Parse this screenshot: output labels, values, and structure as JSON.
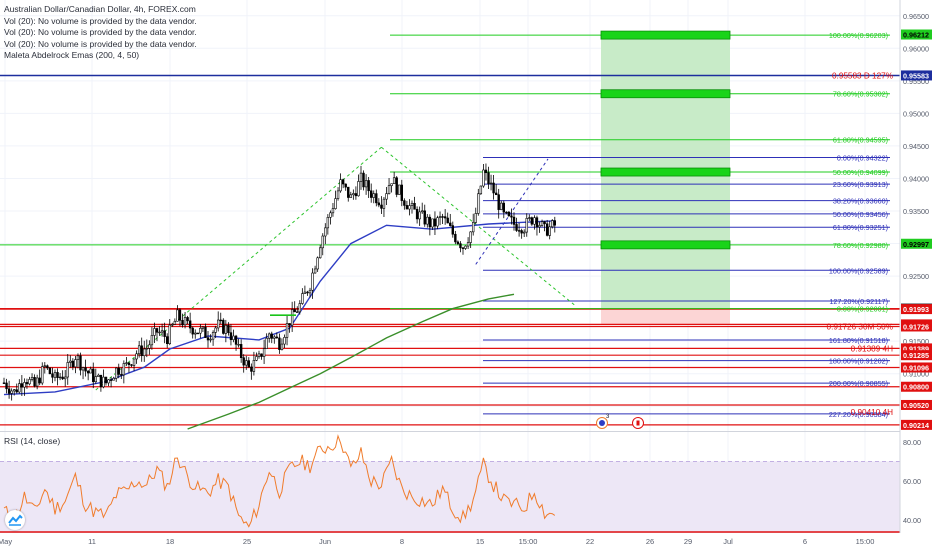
{
  "legend": {
    "title": "Australian Dollar/Canadian Dollar, 4h, FOREX.com",
    "vol_lines": [
      "Vol (20): No volume is provided by the data vendor.",
      "Vol (20): No volume is provided by the data vendor.",
      "Vol (20): No volume is provided by the data vendor."
    ],
    "ema_label": "Maleta Abdelrock Emas (200, 4, 50)",
    "rsi_label": "RSI (14, close)"
  },
  "colors": {
    "up": "#26a69a",
    "down": "#ef5350",
    "candle": "#000000",
    "fib_green": "#1fcc1f",
    "fib_blue": "#2e30b8",
    "red_level": "#e01010",
    "ema_blue": "#2e3dc4",
    "ema_green": "#3a8f2a",
    "rsi_line": "#f07c2c",
    "rsi_band": "#7e57c2",
    "target_zone": "#c8ebc8",
    "stop_zone": "#fcd5d5",
    "current_line": "#1d2e9e"
  },
  "icons": [
    "tradingview-logo-icon",
    "calendar-event-icon",
    "canada-flag-icon"
  ],
  "calendar_badge": "3",
  "chart_data": [
    {
      "type": "candlestick",
      "symbol": "AUDCAD",
      "timeframe": "4h",
      "ylim": [
        0.9012,
        0.9665
      ],
      "y_ticks": [
        0.905,
        0.91,
        0.915,
        0.92,
        0.925,
        0.93,
        0.935,
        0.94,
        0.945,
        0.95,
        0.955,
        0.96,
        0.965
      ],
      "y_tick_labels": [
        "0.90500",
        "0.91000",
        "0.91500",
        "0.92000",
        "0.92500",
        "0.93000",
        "0.93500",
        "0.94000",
        "0.94500",
        "0.95000",
        "0.95500",
        "0.96000",
        "0.96500"
      ],
      "x_tick_labels": [
        "May",
        "11",
        "18",
        "25",
        "Jun",
        "8",
        "15",
        "15:00",
        "22",
        "26",
        "29",
        "Jul",
        "6",
        "15:00"
      ],
      "price_path": [
        [
          0,
          0.9086
        ],
        [
          4,
          0.9072
        ],
        [
          8,
          0.9095
        ],
        [
          12,
          0.908
        ],
        [
          16,
          0.911
        ],
        [
          20,
          0.9092
        ],
        [
          24,
          0.91
        ],
        [
          28,
          0.9128
        ],
        [
          32,
          0.9105
        ],
        [
          36,
          0.9092
        ],
        [
          40,
          0.9086
        ],
        [
          44,
          0.9106
        ],
        [
          48,
          0.9112
        ],
        [
          52,
          0.9132
        ],
        [
          56,
          0.914
        ],
        [
          60,
          0.9165
        ],
        [
          64,
          0.9156
        ],
        [
          68,
          0.9188
        ],
        [
          72,
          0.9174
        ],
        [
          76,
          0.9166
        ],
        [
          80,
          0.916
        ],
        [
          84,
          0.9174
        ],
        [
          88,
          0.9168
        ],
        [
          92,
          0.9135
        ],
        [
          96,
          0.9108
        ],
        [
          100,
          0.9122
        ],
        [
          104,
          0.9162
        ],
        [
          108,
          0.9148
        ],
        [
          112,
          0.9182
        ],
        [
          116,
          0.9205
        ],
        [
          120,
          0.9238
        ],
        [
          124,
          0.9302
        ],
        [
          128,
          0.9348
        ],
        [
          132,
          0.9392
        ],
        [
          136,
          0.937
        ],
        [
          140,
          0.9398
        ],
        [
          144,
          0.9378
        ],
        [
          148,
          0.9365
        ],
        [
          152,
          0.94
        ],
        [
          156,
          0.9372
        ],
        [
          160,
          0.9352
        ],
        [
          164,
          0.934
        ],
        [
          168,
          0.9328
        ],
        [
          172,
          0.934
        ],
        [
          176,
          0.9315
        ],
        [
          180,
          0.9296
        ],
        [
          184,
          0.9325
        ],
        [
          188,
          0.941
        ],
        [
          192,
          0.938
        ],
        [
          196,
          0.9342
        ],
        [
          200,
          0.933
        ],
        [
          204,
          0.9326
        ],
        [
          208,
          0.9342
        ],
        [
          212,
          0.932
        ],
        [
          216,
          0.9328
        ]
      ],
      "swing_high": 0.9448,
      "swing_low": 0.9075,
      "ema_blue": [
        [
          0,
          0.9068
        ],
        [
          20,
          0.9072
        ],
        [
          40,
          0.9088
        ],
        [
          55,
          0.911
        ],
        [
          65,
          0.9138
        ],
        [
          80,
          0.9158
        ],
        [
          100,
          0.9152
        ],
        [
          112,
          0.917
        ],
        [
          124,
          0.9242
        ],
        [
          136,
          0.93
        ],
        [
          150,
          0.9328
        ],
        [
          168,
          0.9322
        ],
        [
          190,
          0.933
        ],
        [
          216,
          0.9335
        ]
      ],
      "ema_green": [
        [
          72,
          0.9015
        ],
        [
          88,
          0.9038
        ],
        [
          100,
          0.9056
        ],
        [
          112,
          0.9078
        ],
        [
          124,
          0.91
        ],
        [
          136,
          0.9125
        ],
        [
          150,
          0.9155
        ],
        [
          164,
          0.918
        ],
        [
          176,
          0.92
        ],
        [
          190,
          0.9215
        ],
        [
          200,
          0.9222
        ]
      ],
      "current_price": "0.92997",
      "current_price_value": 0.92997,
      "price_badges": [
        {
          "value": 0.96212,
          "label": "0.96212",
          "color": "#1fcc1f",
          "text_color": "#000000"
        },
        {
          "value": 0.95583,
          "label": "0.95583",
          "color": "#1d2e9e",
          "text_color": "#ffffff"
        },
        {
          "value": 0.92997,
          "label": "0.92997",
          "color": "#1fcc1f",
          "text_color": "#000000"
        },
        {
          "value": 0.92001,
          "label": "0.92001",
          "color": "#131722",
          "text_color": "#ffffff"
        },
        {
          "value": 0.91993,
          "label": "0.91993",
          "color": "#e01010",
          "text_color": "#ffffff"
        },
        {
          "value": 0.91758,
          "label": "0.91758",
          "color": "#e01010",
          "text_color": "#ffffff"
        },
        {
          "value": 0.91726,
          "label": "0.91726",
          "color": "#e01010",
          "text_color": "#ffffff"
        },
        {
          "value": 0.91389,
          "label": "0.91389",
          "color": "#e01010",
          "text_color": "#ffffff"
        },
        {
          "value": 0.91285,
          "label": "0.91285",
          "color": "#e01010",
          "text_color": "#ffffff"
        },
        {
          "value": 0.91096,
          "label": "0.91096",
          "color": "#e01010",
          "text_color": "#ffffff"
        },
        {
          "value": 0.908,
          "label": "0.90800",
          "color": "#e01010",
          "text_color": "#ffffff"
        },
        {
          "value": 0.9052,
          "label": "0.90520",
          "color": "#e01010",
          "text_color": "#ffffff"
        },
        {
          "value": 0.90214,
          "label": "0.90214",
          "color": "#e01010",
          "text_color": "#ffffff"
        }
      ],
      "fib_green_levels": [
        {
          "value": 0.96203,
          "label": "100.00%(0.96203)"
        },
        {
          "value": 0.95302,
          "label": "78.60%(0.95302)"
        },
        {
          "value": 0.94595,
          "label": "61.80%(0.94595)"
        },
        {
          "value": 0.94099,
          "label": "50.00%(0.94099)"
        },
        {
          "value": 0.9298,
          "label": "78.60%(0.92980)"
        },
        {
          "value": 0.92001,
          "label": "0.00%(0.92001)"
        }
      ],
      "fib_blue_levels": [
        {
          "value": 0.94322,
          "label": "0.00%(0.94322)"
        },
        {
          "value": 0.93913,
          "label": "23.60%(0.93913)"
        },
        {
          "value": 0.9366,
          "label": "38.20%(0.93660)"
        },
        {
          "value": 0.93456,
          "label": "50.00%(0.93456)"
        },
        {
          "value": 0.93251,
          "label": "61.80%(0.93251)"
        },
        {
          "value": 0.92589,
          "label": "100.00%(0.92589)"
        },
        {
          "value": 0.92117,
          "label": "127.20%(0.92117)"
        },
        {
          "value": 0.91518,
          "label": "161.80%(0.91518)"
        },
        {
          "value": 0.91202,
          "label": "180.00%(0.91202)"
        },
        {
          "value": 0.90855,
          "label": "200.00%(0.90855)"
        },
        {
          "value": 0.90384,
          "label": "227.20%(0.90384)"
        }
      ],
      "red_levels": [
        0.92001,
        0.91993,
        0.91758,
        0.91726,
        0.91389,
        0.91285,
        0.91096,
        0.908,
        0.9052,
        0.90214
      ],
      "target_boxes": [
        0.96203,
        0.95302,
        0.94099,
        0.9298
      ],
      "annotations": [
        {
          "value": 0.95583,
          "label": "0.95583 D 127%",
          "color": "#e01010"
        },
        {
          "value": 0.91726,
          "label": "0.91726 30M 50%",
          "color": "#e01010"
        },
        {
          "value": 0.91389,
          "label": "0.91389 4H",
          "color": "#e01010"
        },
        {
          "value": 0.9041,
          "label": "0.90410 4H",
          "color": "#e01010"
        }
      ]
    },
    {
      "type": "line",
      "name": "RSI (14, close)",
      "ylim": [
        35,
        85
      ],
      "y_ticks": [
        40,
        60,
        80
      ],
      "y_tick_labels": [
        "40.00",
        "60.00",
        "80.00"
      ],
      "band": [
        30,
        70
      ],
      "values": [
        [
          0,
          45
        ],
        [
          4,
          40
        ],
        [
          8,
          52
        ],
        [
          12,
          44
        ],
        [
          16,
          56
        ],
        [
          20,
          46
        ],
        [
          24,
          50
        ],
        [
          28,
          62
        ],
        [
          32,
          48
        ],
        [
          36,
          44
        ],
        [
          40,
          42
        ],
        [
          44,
          53
        ],
        [
          48,
          55
        ],
        [
          52,
          60
        ],
        [
          56,
          58
        ],
        [
          60,
          66
        ],
        [
          64,
          57
        ],
        [
          68,
          73
        ],
        [
          72,
          62
        ],
        [
          76,
          56
        ],
        [
          80,
          54
        ],
        [
          84,
          60
        ],
        [
          88,
          57
        ],
        [
          92,
          42
        ],
        [
          96,
          36
        ],
        [
          100,
          48
        ],
        [
          104,
          66
        ],
        [
          108,
          55
        ],
        [
          112,
          66
        ],
        [
          116,
          70
        ],
        [
          120,
          68
        ],
        [
          124,
          76
        ],
        [
          128,
          78
        ],
        [
          132,
          82
        ],
        [
          136,
          66
        ],
        [
          140,
          74
        ],
        [
          144,
          60
        ],
        [
          148,
          58
        ],
        [
          152,
          70
        ],
        [
          156,
          56
        ],
        [
          160,
          52
        ],
        [
          164,
          50
        ],
        [
          168,
          48
        ],
        [
          172,
          56
        ],
        [
          176,
          46
        ],
        [
          180,
          41
        ],
        [
          184,
          50
        ],
        [
          188,
          68
        ],
        [
          192,
          58
        ],
        [
          196,
          50
        ],
        [
          200,
          48
        ],
        [
          204,
          46
        ],
        [
          208,
          55
        ],
        [
          212,
          44
        ],
        [
          216,
          43
        ]
      ]
    }
  ]
}
